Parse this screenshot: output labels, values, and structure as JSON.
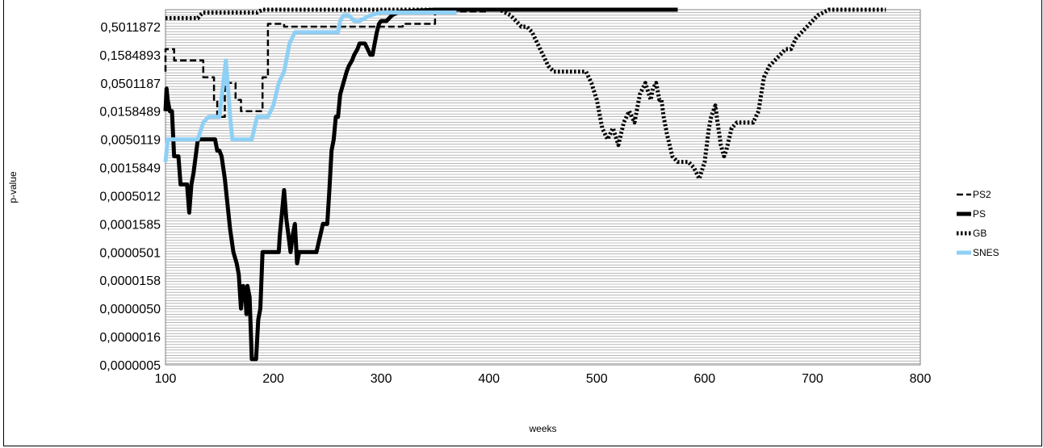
{
  "chart_data": {
    "type": "line",
    "xlabel": "weeks",
    "ylabel": "p-value",
    "xlim": [
      100,
      800
    ],
    "x_ticks": [
      100,
      200,
      300,
      400,
      500,
      600,
      700,
      800
    ],
    "y_tick_labels": [
      "0,5011872",
      "0,1584893",
      "0,0501187",
      "0,0158489",
      "0,0050119",
      "0,0015849",
      "0,0005012",
      "0,0001585",
      "0,0000501",
      "0,0000158",
      "0,0000050",
      "0,0000016",
      "0,0000005"
    ],
    "ylim_log10": [
      -6.3,
      0
    ],
    "grid": true,
    "legend_position": "right",
    "series": [
      {
        "name": "PS2",
        "color": "#000000",
        "style": "dash",
        "x": [
          100,
          100,
          102,
          103,
          108,
          108,
          112,
          112,
          135,
          135,
          145,
          145,
          148,
          148,
          155,
          155,
          165,
          165,
          170,
          170,
          180,
          180,
          190,
          190,
          195,
          195,
          210,
          210,
          320,
          320,
          330,
          330,
          350,
          350,
          360,
          360,
          400
        ],
        "y": [
          -1.1,
          -0.7,
          -0.7,
          -0.7,
          -0.7,
          -0.9,
          -0.9,
          -0.9,
          -0.9,
          -1.2,
          -1.2,
          -1.6,
          -1.6,
          -1.9,
          -1.9,
          -1.3,
          -1.3,
          -1.6,
          -1.6,
          -1.8,
          -1.8,
          -1.8,
          -1.8,
          -1.2,
          -1.2,
          -0.25,
          -0.25,
          -0.3,
          -0.3,
          -0.25,
          -0.25,
          -0.25,
          -0.25,
          -0.05,
          -0.05,
          -0.03,
          -0.03
        ]
      },
      {
        "name": "PS",
        "color": "#000000",
        "style": "solid",
        "x": [
          100,
          101,
          102,
          104,
          106,
          108,
          110,
          112,
          114,
          118,
          120,
          122,
          124,
          126,
          128,
          130,
          132,
          134,
          138,
          142,
          146,
          148,
          150,
          152,
          155,
          160,
          163,
          166,
          168,
          170,
          172,
          174,
          175,
          176,
          178,
          180,
          182,
          184,
          186,
          188,
          190,
          195,
          200,
          205,
          206,
          208,
          210,
          212,
          214,
          216,
          218,
          220,
          222,
          224,
          226,
          228,
          230,
          235,
          240,
          246,
          248,
          250,
          252,
          254,
          256,
          258,
          260,
          262,
          265,
          268,
          270,
          273,
          275,
          278,
          280,
          285,
          290,
          292,
          294,
          296,
          298,
          300,
          305,
          310,
          315,
          320,
          325,
          330,
          340,
          350,
          360,
          370,
          380,
          400,
          420,
          440,
          460,
          480,
          500,
          520,
          540,
          560,
          575
        ],
        "y": [
          -1.8,
          -1.4,
          -1.6,
          -1.8,
          -1.8,
          -2.6,
          -2.6,
          -2.6,
          -3.1,
          -3.1,
          -3.1,
          -3.6,
          -3.1,
          -2.9,
          -2.6,
          -2.3,
          -2.3,
          -2.3,
          -2.3,
          -2.3,
          -2.3,
          -2.5,
          -2.5,
          -2.6,
          -3.0,
          -3.9,
          -4.3,
          -4.5,
          -4.7,
          -5.3,
          -4.9,
          -5.0,
          -5.4,
          -4.9,
          -5.1,
          -6.2,
          -6.2,
          -6.2,
          -5.5,
          -5.3,
          -4.3,
          -4.3,
          -4.3,
          -4.3,
          -4.0,
          -3.6,
          -3.2,
          -3.7,
          -4.0,
          -4.3,
          -4.0,
          -3.8,
          -4.5,
          -4.3,
          -4.3,
          -4.3,
          -4.3,
          -4.3,
          -4.3,
          -3.8,
          -3.8,
          -3.8,
          -3.2,
          -2.5,
          -2.3,
          -1.9,
          -1.9,
          -1.5,
          -1.3,
          -1.1,
          -1.0,
          -0.9,
          -0.8,
          -0.7,
          -0.6,
          -0.6,
          -0.8,
          -0.8,
          -0.6,
          -0.4,
          -0.25,
          -0.2,
          -0.2,
          -0.1,
          -0.05,
          -0.03,
          -0.03,
          -0.02,
          -0.01,
          0,
          0,
          0,
          0,
          0,
          0,
          0,
          0,
          0,
          0,
          0,
          0,
          0,
          0
        ]
      },
      {
        "name": "GB",
        "color": "#000000",
        "style": "dot",
        "x": [
          100,
          110,
          120,
          130,
          132,
          135,
          140,
          150,
          160,
          170,
          180,
          185,
          190,
          200,
          300,
          400,
          410,
          420,
          425,
          430,
          435,
          440,
          445,
          450,
          455,
          460,
          465,
          470,
          490,
          495,
          500,
          505,
          510,
          515,
          520,
          525,
          530,
          535,
          540,
          545,
          550,
          552,
          555,
          558,
          560,
          562,
          565,
          570,
          575,
          580,
          585,
          590,
          595,
          600,
          602,
          604,
          606,
          608,
          610,
          612,
          615,
          618,
          620,
          625,
          630,
          635,
          640,
          645,
          650,
          655,
          660,
          665,
          670,
          675,
          680,
          685,
          690,
          700,
          705,
          710,
          715,
          720,
          730,
          740,
          750,
          760,
          768
        ],
        "y": [
          -0.15,
          -0.15,
          -0.15,
          -0.15,
          -0.1,
          -0.05,
          -0.05,
          -0.05,
          -0.05,
          -0.05,
          -0.05,
          -0.05,
          0,
          0,
          0,
          0,
          0,
          -0.1,
          -0.2,
          -0.3,
          -0.3,
          -0.4,
          -0.6,
          -0.8,
          -1.0,
          -1.1,
          -1.1,
          -1.1,
          -1.1,
          -1.3,
          -1.6,
          -2.1,
          -2.3,
          -2.1,
          -2.4,
          -2.0,
          -1.8,
          -2.0,
          -1.5,
          -1.3,
          -1.6,
          -1.4,
          -1.3,
          -1.6,
          -1.6,
          -1.9,
          -2.2,
          -2.6,
          -2.7,
          -2.7,
          -2.7,
          -2.8,
          -3.0,
          -2.7,
          -2.4,
          -2.1,
          -1.9,
          -1.8,
          -1.7,
          -2.0,
          -2.4,
          -2.6,
          -2.5,
          -2.1,
          -2.0,
          -2.0,
          -2.0,
          -2.0,
          -1.8,
          -1.2,
          -1.0,
          -0.9,
          -0.8,
          -0.7,
          -0.7,
          -0.5,
          -0.4,
          -0.2,
          -0.1,
          -0.05,
          0,
          0,
          0,
          0,
          0,
          0,
          0
        ]
      },
      {
        "name": "SNES",
        "color": "#8fd0f5",
        "style": "solid",
        "x": [
          100,
          102,
          103,
          110,
          120,
          130,
          135,
          140,
          145,
          150,
          153,
          156,
          158,
          160,
          162,
          164,
          166,
          168,
          170,
          175,
          180,
          185,
          190,
          195,
          200,
          205,
          210,
          212,
          215,
          220,
          230,
          240,
          250,
          260,
          262,
          265,
          270,
          275,
          280,
          290,
          300,
          310,
          315,
          320,
          325,
          330,
          340,
          350,
          360,
          370
        ],
        "y": [
          -2.7,
          -2.3,
          -2.3,
          -2.3,
          -2.3,
          -2.3,
          -2.0,
          -1.9,
          -1.9,
          -1.9,
          -1.4,
          -0.9,
          -1.4,
          -1.9,
          -2.3,
          -2.3,
          -2.3,
          -2.3,
          -2.3,
          -2.3,
          -2.3,
          -1.9,
          -1.9,
          -1.9,
          -1.7,
          -1.3,
          -1.1,
          -0.9,
          -0.6,
          -0.4,
          -0.4,
          -0.4,
          -0.4,
          -0.4,
          -0.2,
          -0.1,
          -0.1,
          -0.2,
          -0.2,
          -0.1,
          -0.05,
          -0.05,
          -0.05,
          -0.05,
          -0.05,
          -0.05,
          -0.05,
          -0.05,
          -0.05,
          -0.05
        ]
      }
    ]
  }
}
